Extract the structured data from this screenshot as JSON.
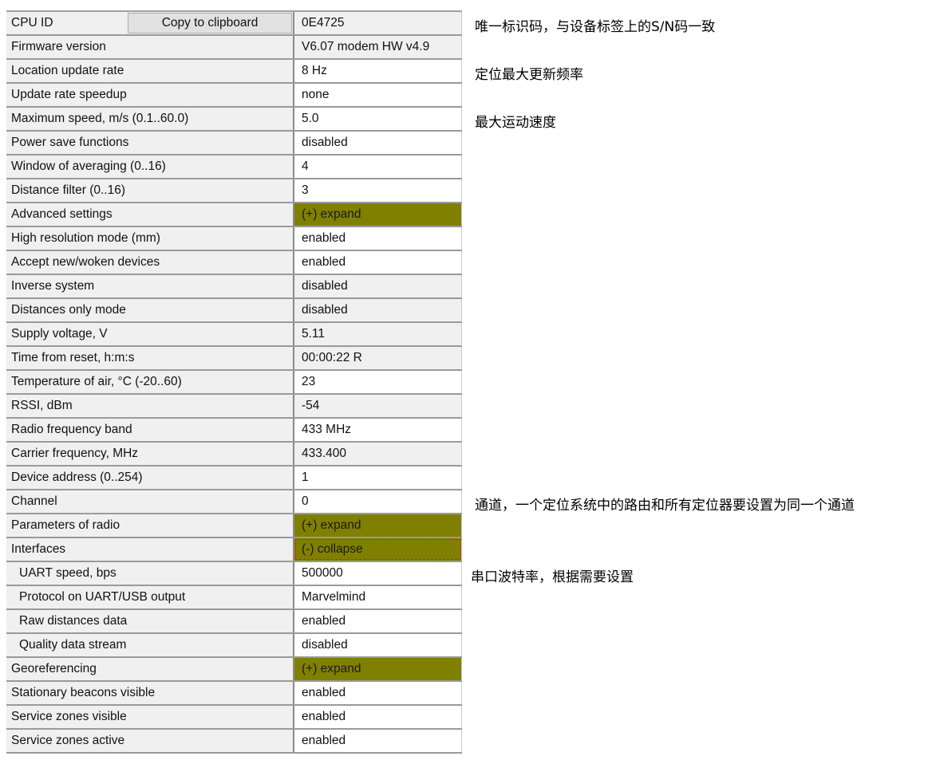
{
  "copy_button_label": "Copy to clipboard",
  "rows": [
    {
      "name": "CPU ID",
      "value": "0E4725",
      "style": "ro"
    },
    {
      "name": "Firmware version",
      "value": "V6.07 modem HW v4.9",
      "style": "ro"
    },
    {
      "name": "Location update rate",
      "value": "8 Hz",
      "style": "edit"
    },
    {
      "name": "Update rate speedup",
      "value": "none",
      "style": "edit"
    },
    {
      "name": "Maximum speed, m/s (0.1..60.0)",
      "value": "5.0",
      "style": "edit"
    },
    {
      "name": "Power save functions",
      "value": "disabled",
      "style": "edit"
    },
    {
      "name": "Window of averaging (0..16)",
      "value": "4",
      "style": "edit"
    },
    {
      "name": "Distance filter (0..16)",
      "value": "3",
      "style": "edit"
    },
    {
      "name": "Advanced settings",
      "value": "(+) expand",
      "style": "grp"
    },
    {
      "name": "High resolution mode (mm)",
      "value": "enabled",
      "style": "edit"
    },
    {
      "name": "Accept new/woken devices",
      "value": "enabled",
      "style": "edit"
    },
    {
      "name": "Inverse system",
      "value": "disabled",
      "style": "ro"
    },
    {
      "name": "Distances only mode",
      "value": "disabled",
      "style": "ro"
    },
    {
      "name": "Supply voltage, V",
      "value": "5.11",
      "style": "ro"
    },
    {
      "name": "Time from reset, h:m:s",
      "value": "00:00:22   R",
      "style": "ro"
    },
    {
      "name": "Temperature of air, °C (-20..60)",
      "value": "23",
      "style": "edit"
    },
    {
      "name": "RSSI, dBm",
      "value": "-54",
      "style": "ro"
    },
    {
      "name": "Radio frequency band",
      "value": "433 MHz",
      "style": "edit"
    },
    {
      "name": "Carrier frequency, MHz",
      "value": "433.400",
      "style": "ro"
    },
    {
      "name": "Device address (0..254)",
      "value": "1",
      "style": "edit"
    },
    {
      "name": "Channel",
      "value": "0",
      "style": "edit"
    },
    {
      "name": "Parameters of radio",
      "value": "(+) expand",
      "style": "grp"
    },
    {
      "name": "Interfaces",
      "value": "(-) collapse",
      "style": "grp focus"
    },
    {
      "name": "UART speed, bps",
      "value": "500000",
      "style": "edit",
      "sub": true
    },
    {
      "name": "Protocol on UART/USB output",
      "value": "Marvelmind",
      "style": "edit",
      "sub": true
    },
    {
      "name": "Raw distances data",
      "value": "enabled",
      "style": "edit",
      "sub": true
    },
    {
      "name": "Quality data stream",
      "value": "disabled",
      "style": "edit",
      "sub": true
    },
    {
      "name": "Georeferencing",
      "value": "(+) expand",
      "style": "grp"
    },
    {
      "name": "Stationary beacons visible",
      "value": "enabled",
      "style": "edit"
    },
    {
      "name": "Service zones visible",
      "value": "enabled",
      "style": "edit"
    },
    {
      "name": "Service zones active",
      "value": "enabled",
      "style": "edit"
    }
  ],
  "annotations": [
    {
      "row": 0,
      "text": "唯一标识码，与设备标签上的S/N码一致"
    },
    {
      "row": 2,
      "text": "定位最大更新频率"
    },
    {
      "row": 4,
      "text": "最大运动速度"
    },
    {
      "row": 20,
      "text": "通道，一个定位系统中的路由和所有定位器要设置为同一个通道"
    },
    {
      "row": 23,
      "text": "串口波特率，根据需要设置"
    }
  ],
  "colors": {
    "group_cell": "#808000",
    "readonly_cell": "#f0f0f0",
    "focus_outline": "#e02020"
  }
}
